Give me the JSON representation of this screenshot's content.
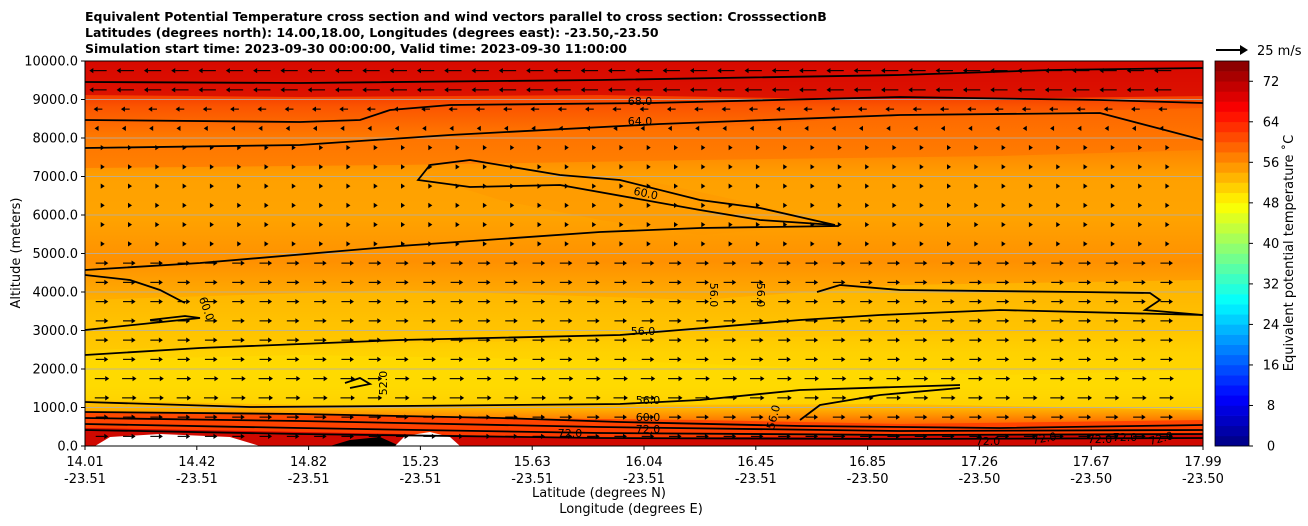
{
  "chart_data": {
    "type": "contour",
    "title_lines": [
      "Equivalent Potential Temperature cross section and wind vectors parallel to cross section: CrosssectionB",
      "Latitudes (degrees north): 14.00,18.00, Longitudes (degrees east): -23.50,-23.50",
      "Simulation start time: 2023-09-30 00:00:00, Valid time: 2023-09-30 11:00:00"
    ],
    "ylabel": "Altitude (meters)",
    "xlabel_lines": [
      "Latitude (degrees N)",
      "Longitude (degrees E)"
    ],
    "ylim": [
      0,
      10000
    ],
    "y_ticks": [
      "0.0",
      "1000.0",
      "2000.0",
      "3000.0",
      "4000.0",
      "5000.0",
      "6000.0",
      "7000.0",
      "8000.0",
      "9000.0",
      "10000.0"
    ],
    "x_ticks": [
      {
        "lat": "14.01",
        "lon": "-23.51"
      },
      {
        "lat": "14.42",
        "lon": "-23.51"
      },
      {
        "lat": "14.82",
        "lon": "-23.51"
      },
      {
        "lat": "15.23",
        "lon": "-23.51"
      },
      {
        "lat": "15.63",
        "lon": "-23.51"
      },
      {
        "lat": "16.04",
        "lon": "-23.51"
      },
      {
        "lat": "16.45",
        "lon": "-23.51"
      },
      {
        "lat": "16.85",
        "lon": "-23.50"
      },
      {
        "lat": "17.26",
        "lon": "-23.50"
      },
      {
        "lat": "17.67",
        "lon": "-23.50"
      },
      {
        "lat": "17.99",
        "lon": "-23.50"
      }
    ],
    "grid": "horizontal",
    "colorbar": {
      "label": "Equivalent potential temperature ˚C",
      "range": [
        0,
        76
      ],
      "ticks": [
        "0",
        "8",
        "16",
        "24",
        "32",
        "40",
        "48",
        "56",
        "64",
        "72"
      ]
    },
    "quiver_key": {
      "label": "25 m/s",
      "value": 25
    },
    "contour_labels": [
      "68.0",
      "64.0",
      "60.0",
      "60.0",
      "56.0",
      "56.0",
      "56.0",
      "52.0",
      "56.0",
      "60.0",
      "72.0",
      "72.0",
      "72.0",
      "72.0",
      "72.0",
      "72.0",
      "72.0",
      "56.0"
    ],
    "wind_direction_by_altitude": [
      {
        "altitude": 9700,
        "direction": "southward"
      },
      {
        "altitude": 9300,
        "direction": "southward"
      },
      {
        "altitude": 4500,
        "direction": "northward"
      },
      {
        "altitude": 2000,
        "direction": "northward"
      },
      {
        "altitude": 1000,
        "direction": "northward"
      }
    ]
  }
}
